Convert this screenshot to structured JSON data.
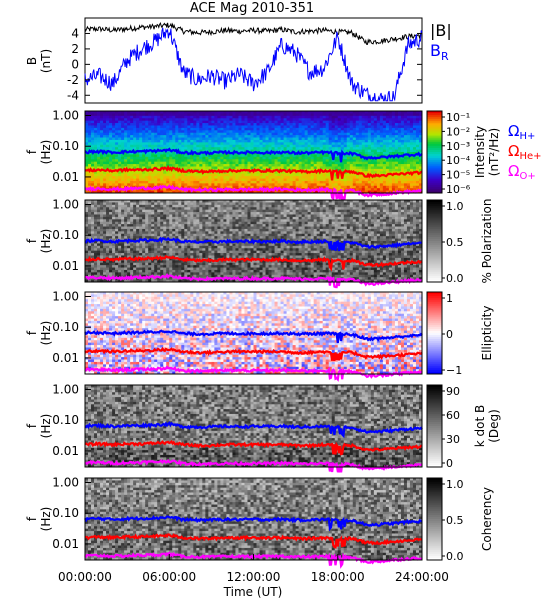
{
  "title": "ACE Mag 2010-351",
  "x_axis": {
    "label": "Time (UT)",
    "ticks": [
      "00:00:00",
      "06:00:00",
      "12:00:00",
      "18:00:00",
      "24:00:00"
    ],
    "range_hours": [
      0,
      24
    ]
  },
  "colors": {
    "B": "#000000",
    "BR": "#0000ff",
    "H": "#0000ff",
    "He": "#ff0000",
    "O": "#ff00ff"
  },
  "line_panel": {
    "ylabel": "B",
    "yunit": "(nT)",
    "ylim": [
      -5,
      6
    ],
    "yticks": [
      "4",
      "2",
      "0",
      "-2",
      "-4"
    ],
    "legend": {
      "b_label": "|B|",
      "br_label": "B",
      "br_sub": "R"
    }
  },
  "spectrogram_panels": [
    {
      "key": "intensity",
      "ylabel": "f",
      "yunit": "(Hz)",
      "yticks": [
        "1.00",
        "0.10",
        "0.01"
      ],
      "bar_label_1": "Intensity",
      "bar_label_2": "(nT²/Hz)",
      "colormap": "rainbow",
      "bar_ticks": [
        "10⁻¹",
        "10⁻²",
        "10⁻³",
        "10⁻⁴",
        "10⁻⁵",
        "10⁻⁶"
      ],
      "legend": {
        "omega": "Ω",
        "h_sub": "H+",
        "he_sub": "He+",
        "o_sub": "O+"
      }
    },
    {
      "key": "polarization",
      "ylabel": "f",
      "yunit": "(Hz)",
      "yticks": [
        "1.00",
        "0.10",
        "0.01"
      ],
      "bar_label_1": "% Polarization",
      "bar_label_2": "",
      "colormap": "gray",
      "bar_ticks": [
        "1.0",
        "0.5",
        "0.0"
      ]
    },
    {
      "key": "ellipticity",
      "ylabel": "f",
      "yunit": "(Hz)",
      "yticks": [
        "1.00",
        "0.10",
        "0.01"
      ],
      "bar_label_1": "Ellipticity",
      "bar_label_2": "",
      "colormap": "bwr",
      "bar_ticks": [
        "1",
        "0",
        "−1"
      ]
    },
    {
      "key": "kdotb",
      "ylabel": "f",
      "yunit": "(Hz)",
      "yticks": [
        "1.00",
        "0.10",
        "0.01"
      ],
      "bar_label_1": "k dot B",
      "bar_label_2": "(Deg)",
      "colormap": "gray",
      "bar_ticks": [
        "90",
        "60",
        "30",
        "0"
      ]
    },
    {
      "key": "coherency",
      "ylabel": "f",
      "yunit": "(Hz)",
      "yticks": [
        "1.00",
        "0.10",
        "0.01"
      ],
      "bar_label_1": "Coherency",
      "bar_label_2": "",
      "colormap": "gray",
      "bar_ticks": [
        "1.0",
        "0.5",
        "0.0"
      ]
    }
  ],
  "chart_data": {
    "type": "line",
    "title": "ACE Mag 2010-351",
    "xlabel": "Time (UT)",
    "x_hours": [
      0,
      1,
      2,
      3,
      4,
      5,
      6,
      7,
      8,
      9,
      10,
      11,
      12,
      13,
      14,
      15,
      16,
      17,
      18,
      19,
      20,
      21,
      22,
      23,
      24
    ],
    "series": [
      {
        "name": "|B|",
        "values": [
          4.5,
          4.6,
          4.4,
          4.6,
          4.8,
          4.9,
          5.1,
          4.3,
          4.1,
          4.2,
          4.4,
          4.3,
          4.4,
          4.3,
          4.5,
          4.2,
          4.3,
          4.4,
          4.2,
          4.1,
          2.9,
          3.0,
          3.3,
          3.6,
          3.8
        ]
      },
      {
        "name": "B_R",
        "values": [
          -2.0,
          -1.5,
          -2.5,
          0.5,
          2.0,
          3.0,
          4.5,
          -1.0,
          -2.0,
          -1.5,
          -2.2,
          -1.3,
          -2.5,
          -1.0,
          2.5,
          1.5,
          -1.0,
          -0.5,
          3.5,
          -2.5,
          -3.8,
          -4.5,
          -4.3,
          2.5,
          3.5
        ]
      }
    ],
    "ylabel": "B (nT)",
    "ylim": [
      -5,
      6
    ],
    "grid": false,
    "gyrofrequency_hz": {
      "H+": [
        0.065,
        0.067,
        0.063,
        0.066,
        0.068,
        0.07,
        0.075,
        0.062,
        0.06,
        0.061,
        0.063,
        0.062,
        0.063,
        0.062,
        0.064,
        0.06,
        0.061,
        0.063,
        0.06,
        0.058,
        0.042,
        0.043,
        0.047,
        0.052,
        0.055
      ],
      "He+": [
        0.016,
        0.017,
        0.016,
        0.017,
        0.017,
        0.018,
        0.019,
        0.016,
        0.015,
        0.015,
        0.016,
        0.016,
        0.016,
        0.016,
        0.016,
        0.015,
        0.015,
        0.016,
        0.015,
        0.015,
        0.011,
        0.011,
        0.012,
        0.013,
        0.014
      ],
      "O+": [
        0.0041,
        0.0042,
        0.004,
        0.0041,
        0.0043,
        0.0044,
        0.0047,
        0.0039,
        0.0038,
        0.0038,
        0.0039,
        0.0039,
        0.0039,
        0.0039,
        0.004,
        0.0038,
        0.0038,
        0.0039,
        0.0038,
        0.0036,
        0.0026,
        0.0027,
        0.003,
        0.0033,
        0.0035
      ]
    }
  }
}
